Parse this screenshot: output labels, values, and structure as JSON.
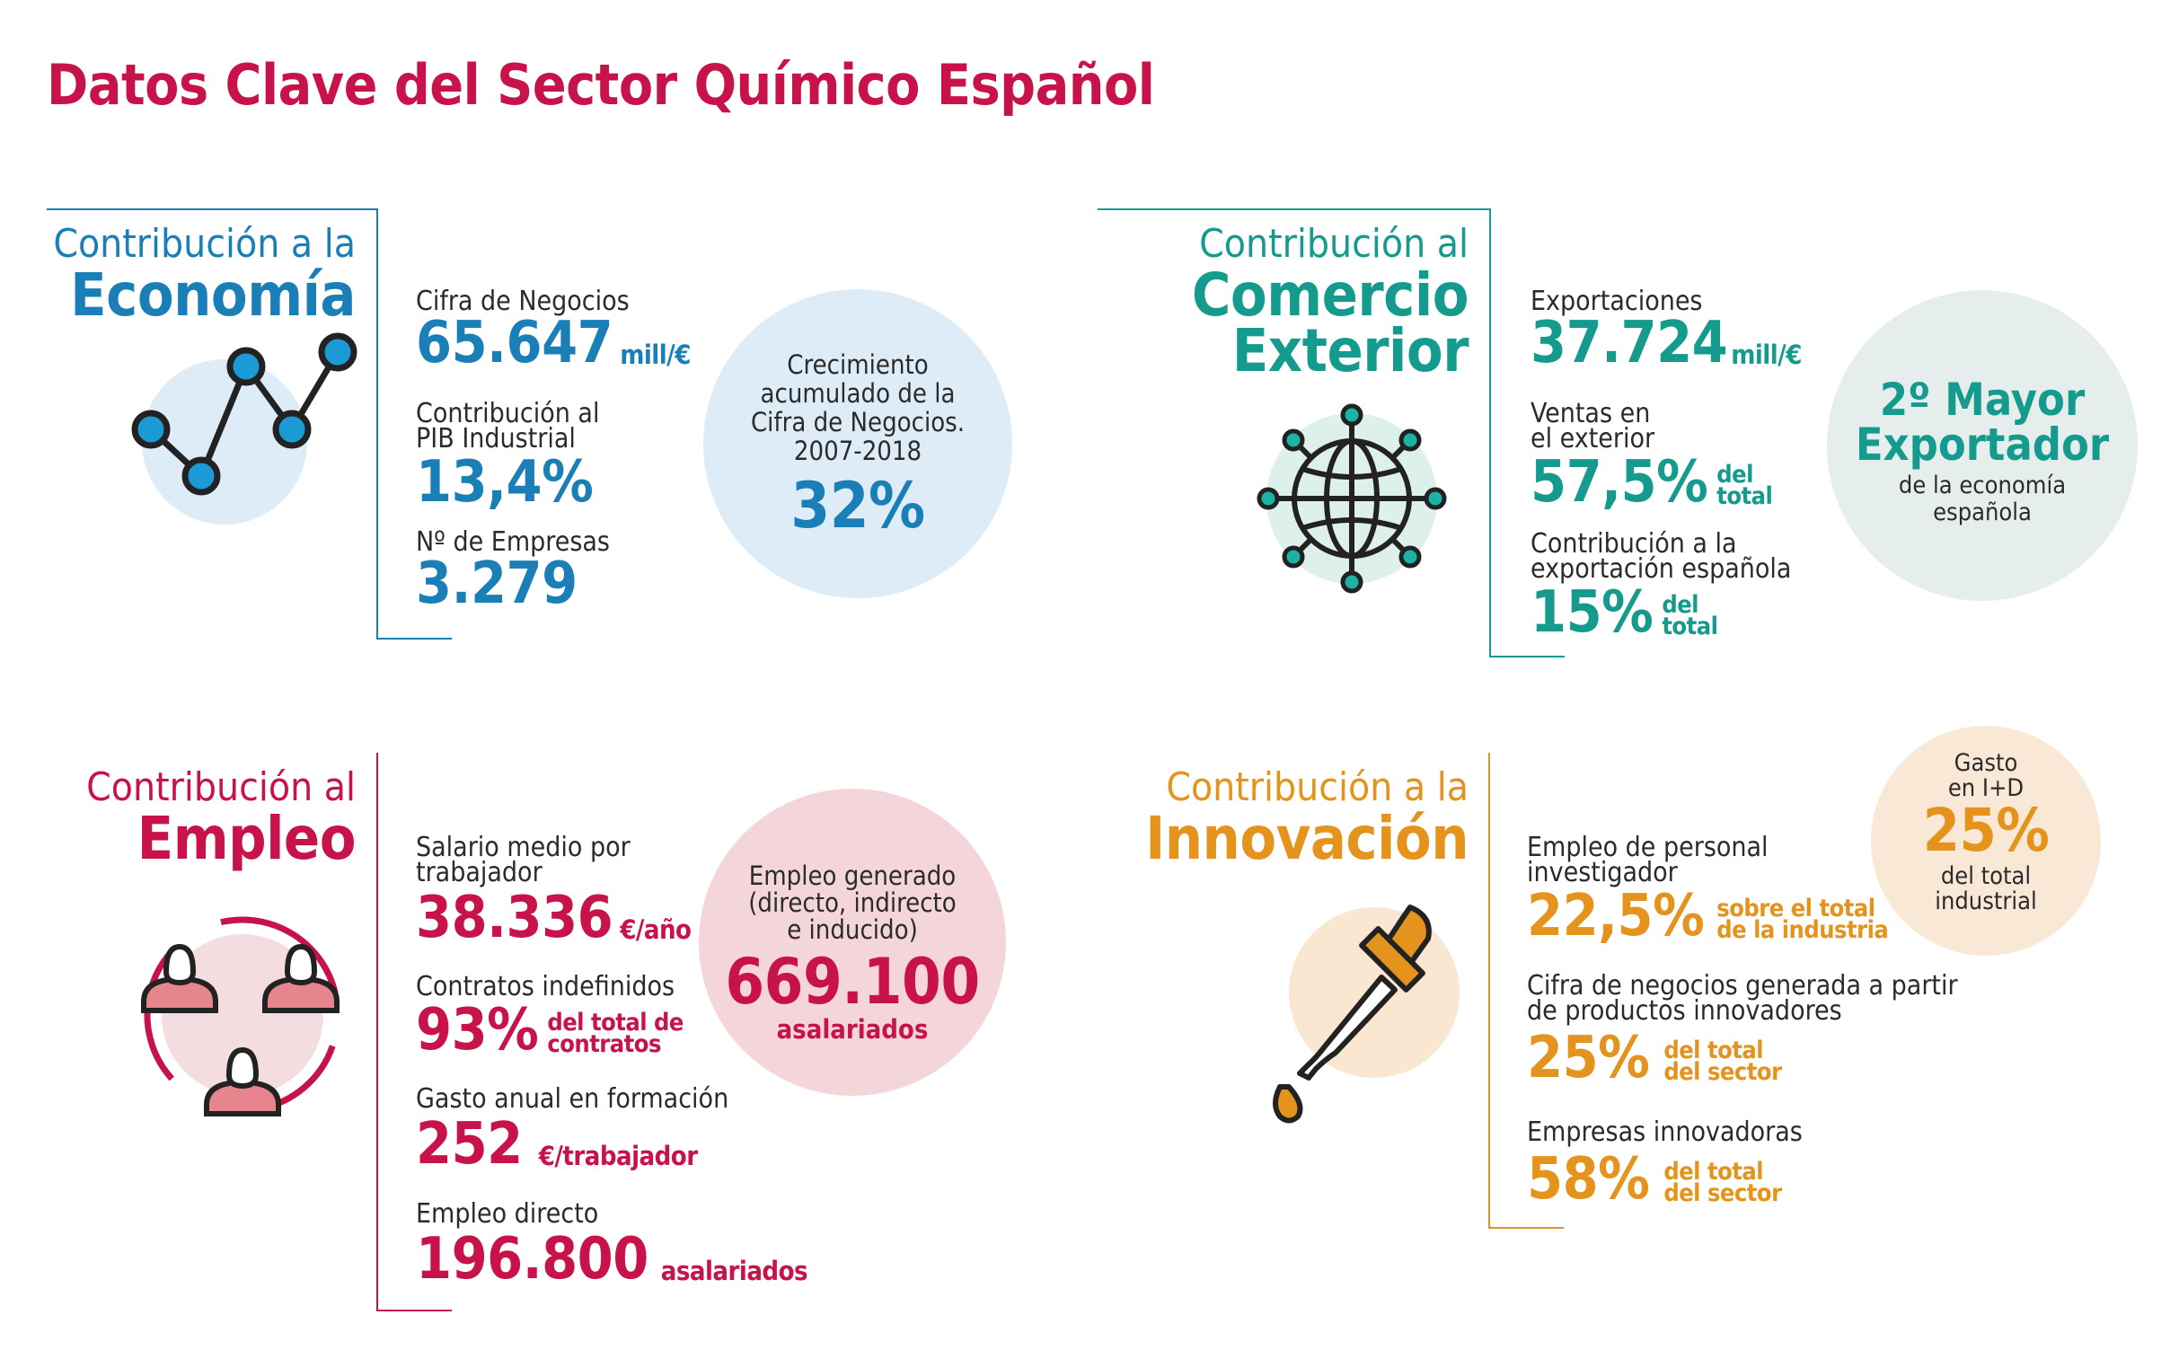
{
  "title": "Datos Clave del Sector Químico Español",
  "colors": {
    "blue": "#1b7fb7",
    "teal": "#159b8e",
    "crimson": "#c8124a",
    "amber": "#e4941c"
  },
  "economia": {
    "head1": "Contribución a la",
    "head2": "Economía",
    "icon": "line-chart-icon",
    "s1_label": "Cifra de Negocios",
    "s1_value": "65.647",
    "s1_unit": "mill/€",
    "s2_label1": "Contribución al",
    "s2_label2": "PIB Industrial",
    "s2_value": "13,4%",
    "s3_label": "Nº de Empresas",
    "s3_value": "3.279",
    "circle_l1": "Crecimiento",
    "circle_l2": "acumulado de la",
    "circle_l3": "Cifra de Negocios.",
    "circle_l4": "2007-2018",
    "circle_value": "32%"
  },
  "comercio": {
    "head1": "Contribución al",
    "head2": "Comercio",
    "head3": "Exterior",
    "icon": "globe-network-icon",
    "s1_label": "Exportaciones",
    "s1_value": "37.724",
    "s1_unit": "mill/€",
    "s2_label1": "Ventas en",
    "s2_label2": "el exterior",
    "s2_value": "57,5%",
    "s2_unit1": "del",
    "s2_unit2": "total",
    "s3_label1": "Contribución a la",
    "s3_label2": "exportación española",
    "s3_value": "15%",
    "s3_unit1": "del",
    "s3_unit2": "total",
    "circle_l1": "2º Mayor",
    "circle_l2": "Exportador",
    "circle_l3": "de la economía",
    "circle_l4": "española"
  },
  "empleo": {
    "head1": "Contribución al",
    "head2": "Empleo",
    "icon": "people-group-icon",
    "s1_label1": "Salario medio por",
    "s1_label2": "trabajador",
    "s1_value": "38.336",
    "s1_unit": "€/año",
    "s2_label": "Contratos indefinidos",
    "s2_value": "93%",
    "s2_unit1": "del total de",
    "s2_unit2": "contratos",
    "s3_label": "Gasto anual en formación",
    "s3_value": "252",
    "s3_unit": "€/trabajador",
    "s4_label": "Empleo directo",
    "s4_value": "196.800",
    "s4_unit": "asalariados",
    "circle_l1": "Empleo generado",
    "circle_l2": "(directo, indirecto",
    "circle_l3": "e inducido)",
    "circle_value": "669.100",
    "circle_unit": "asalariados"
  },
  "innovacion": {
    "head1": "Contribución a la",
    "head2": "Innovación",
    "icon": "dropper-icon",
    "s1_label1": "Empleo de personal",
    "s1_label2": "investigador",
    "s1_value": "22,5%",
    "s1_unit1": "sobre el total",
    "s1_unit2": "de la industria",
    "s2_label1": "Cifra de negocios generada a partir",
    "s2_label2": "de productos innovadores",
    "s2_value": "25%",
    "s2_unit1": "del total",
    "s2_unit2": "del sector",
    "s3_label": "Empresas innovadoras",
    "s3_value": "58%",
    "s3_unit1": "del total",
    "s3_unit2": "del sector",
    "circle_l1": "Gasto",
    "circle_l2": "en I+D",
    "circle_value": "25%",
    "circle_l3": "del total",
    "circle_l4": "industrial"
  }
}
